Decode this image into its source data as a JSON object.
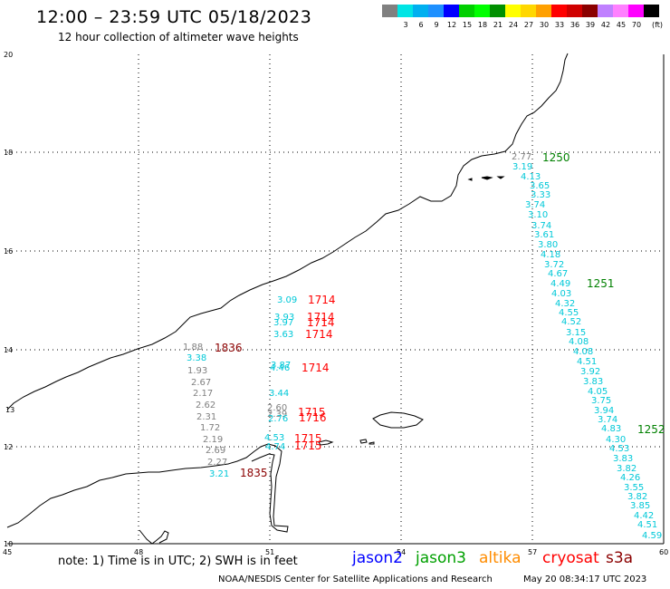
{
  "header": {
    "title": "12:00 – 23:59 UTC 05/18/2023",
    "subtitle": "12 hour collection of altimeter wave heights"
  },
  "scale": {
    "unit": "(ft)",
    "steps": [
      {
        "color": "#808080",
        "label": ""
      },
      {
        "color": "#00e5e5",
        "label": "3"
      },
      {
        "color": "#00b0f0",
        "label": "6"
      },
      {
        "color": "#1e90ff",
        "label": "9"
      },
      {
        "color": "#0000ff",
        "label": "12"
      },
      {
        "color": "#00d000",
        "label": "15"
      },
      {
        "color": "#00ff00",
        "label": "18"
      },
      {
        "color": "#009000",
        "label": "21"
      },
      {
        "color": "#ffff00",
        "label": "24"
      },
      {
        "color": "#ffd700",
        "label": "27"
      },
      {
        "color": "#ffa000",
        "label": "30"
      },
      {
        "color": "#ff0000",
        "label": "33"
      },
      {
        "color": "#d00000",
        "label": "36"
      },
      {
        "color": "#8b0000",
        "label": "39"
      },
      {
        "color": "#c080ff",
        "label": "42"
      },
      {
        "color": "#ff80ff",
        "label": "45"
      },
      {
        "color": "#ff00ff",
        "label": "70"
      },
      {
        "color": "#000000",
        "label": ""
      }
    ]
  },
  "map": {
    "lon_labels": [
      "45",
      "48",
      "51",
      "54",
      "57",
      "60"
    ],
    "lat_labels": [
      "20",
      "18",
      "16",
      "14",
      "12",
      "10"
    ],
    "side_lat_label": "13"
  },
  "observations": {
    "cryosat": {
      "color": "#808080",
      "values": [
        "1.88",
        "3.38",
        "1.93",
        "2.67",
        "2.17",
        "2.62",
        "2.31",
        "1.72",
        "2.19",
        "2.69",
        "2.27",
        "3.21"
      ],
      "top_value": "2.77"
    },
    "s3a_times": {
      "color": "#8b0000",
      "labels": [
        "1836",
        "1835"
      ]
    },
    "jason3_times": {
      "color": "#008000",
      "labels": [
        "1250",
        "1251",
        "1252"
      ]
    },
    "track57": {
      "color": "#00c8d8",
      "values": [
        "3.19",
        "4.13",
        "3.65",
        "3.33",
        "3.74",
        "3.10",
        "3.74",
        "3.61",
        "3.80",
        "4.18",
        "3.72",
        "4.67",
        "4.49",
        "4.03",
        "4.32",
        "4.55",
        "4.52",
        "3.15",
        "4.08",
        "4.08",
        "4.51",
        "3.92",
        "3.83",
        "4.05",
        "3.75",
        "3.94",
        "3.74",
        "4.83",
        "4.30",
        "4.53",
        "3.83",
        "3.82",
        "4.26",
        "3.55",
        "3.82",
        "3.85",
        "4.42",
        "4.51",
        "4.59"
      ]
    },
    "track51": {
      "color": "#00c8d8",
      "values": [
        "3.09",
        "3.93",
        "3.97",
        "3.63",
        "3.87",
        "4.46",
        "3.44",
        "2.60",
        "2.39",
        "2.76",
        "4.53",
        "4.74"
      ],
      "gray_values": [
        "2.60",
        "2.39"
      ]
    },
    "altika_times": {
      "color": "#ff0000",
      "labels": [
        "1714",
        "1714",
        "1714",
        "1714",
        "1714",
        "1715",
        "1716",
        "1715",
        "1715"
      ]
    }
  },
  "footer": {
    "note": "note: 1) Time is in UTC; 2) SWH is in feet",
    "legend": [
      {
        "label": "jason2",
        "color": "#0000ff"
      },
      {
        "label": "jason3",
        "color": "#00a000"
      },
      {
        "label": "altika",
        "color": "#ff8c00"
      },
      {
        "label": "cryosat",
        "color": "#ff0000"
      },
      {
        "label": "s3a",
        "color": "#8b0000"
      }
    ],
    "credit": "NOAA/NESDIS Center for Satellite Applications and Research",
    "timestamp": "May 20 08:34:17 UTC 2023"
  }
}
